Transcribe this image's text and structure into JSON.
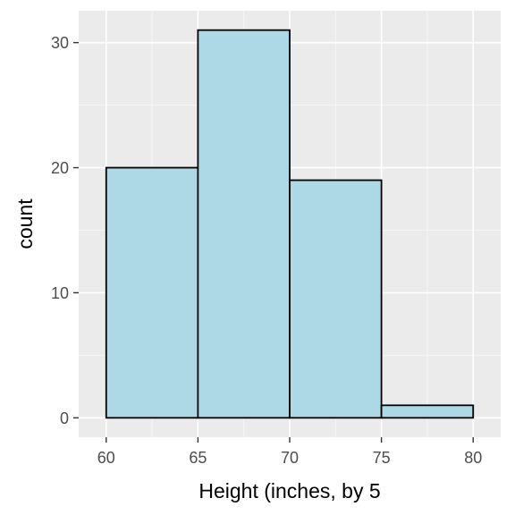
{
  "chart_data": {
    "type": "bar",
    "subtype": "histogram",
    "bins": [
      {
        "start": 60,
        "end": 65,
        "count": 20
      },
      {
        "start": 65,
        "end": 70,
        "count": 31
      },
      {
        "start": 70,
        "end": 75,
        "count": 19
      },
      {
        "start": 75,
        "end": 80,
        "count": 1
      }
    ],
    "xlabel": "Height (inches, by 5",
    "ylabel": "count",
    "xlim": [
      58.5,
      81.5
    ],
    "ylim": [
      -1.55,
      32.55
    ],
    "x_ticks": [
      60,
      65,
      70,
      75,
      80
    ],
    "y_ticks": [
      0,
      10,
      20,
      30
    ],
    "x_minor_ticks": [
      62.5,
      67.5,
      72.5,
      77.5
    ],
    "y_minor_ticks": [
      5,
      15,
      25
    ],
    "grid": true,
    "colors": {
      "panel_background": "#ebebeb",
      "grid_major": "#ffffff",
      "grid_minor": "#f7f7f7",
      "bar_fill": "#add8e6",
      "bar_outline": "#000000",
      "tick_label": "#4d4d4d",
      "axis_title": "#000000",
      "axis_tick": "#333333"
    }
  }
}
